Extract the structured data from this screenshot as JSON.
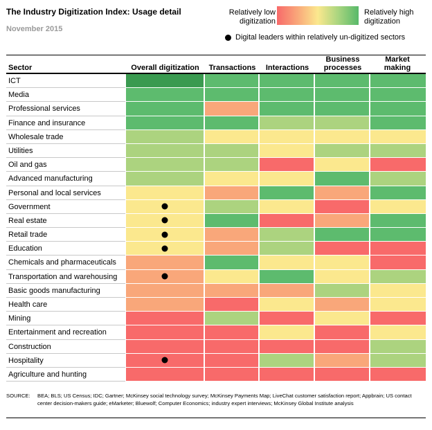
{
  "title": "The Industry Digitization Index: Usage detail",
  "date": "November 2015",
  "legend": {
    "low": "Relatively low digitization",
    "high": "Relatively high digitization",
    "leader_note": "Digital leaders within relatively un-digitized sectors"
  },
  "colors": {
    "1": "#f86a6a",
    "2": "#f9a77a",
    "3": "#fbe88e",
    "4": "#acd37f",
    "5": "#5dbb6e",
    "6": "#3a9a50"
  },
  "chart_data": {
    "type": "heatmap",
    "scale_note": "levels 1 (relatively low) to 6 (relatively high digitization)",
    "columns": [
      "Sector",
      "Overall digitization",
      "Transactions",
      "Interactions",
      "Business processes",
      "Market making"
    ],
    "rows": [
      {
        "sector": "ICT",
        "values": [
          6,
          5,
          5,
          5,
          5
        ],
        "leader": false
      },
      {
        "sector": "Media",
        "values": [
          5,
          5,
          5,
          5,
          5
        ],
        "leader": false
      },
      {
        "sector": "Professional services",
        "values": [
          5,
          2,
          5,
          5,
          5
        ],
        "leader": false
      },
      {
        "sector": "Finance and insurance",
        "values": [
          5,
          5,
          4,
          4,
          5
        ],
        "leader": false
      },
      {
        "sector": "Wholesale trade",
        "values": [
          4,
          3,
          3,
          3,
          3
        ],
        "leader": false
      },
      {
        "sector": "Utilities",
        "values": [
          4,
          4,
          3,
          4,
          4
        ],
        "leader": false
      },
      {
        "sector": "Oil and gas",
        "values": [
          4,
          4,
          1,
          3,
          1
        ],
        "leader": false
      },
      {
        "sector": "Advanced manufacturing",
        "values": [
          4,
          3,
          3,
          5,
          4
        ],
        "leader": false
      },
      {
        "sector": "Personal and local services",
        "values": [
          3,
          2,
          5,
          2,
          5
        ],
        "leader": false
      },
      {
        "sector": "Government",
        "values": [
          3,
          4,
          3,
          1,
          3
        ],
        "leader": true
      },
      {
        "sector": "Real estate",
        "values": [
          3,
          5,
          1,
          2,
          5
        ],
        "leader": true
      },
      {
        "sector": "Retail trade",
        "values": [
          3,
          2,
          4,
          5,
          5
        ],
        "leader": true
      },
      {
        "sector": "Education",
        "values": [
          3,
          2,
          4,
          1,
          1
        ],
        "leader": true
      },
      {
        "sector": "Chemicals and pharmaceuticals",
        "values": [
          2,
          5,
          3,
          3,
          1
        ],
        "leader": false
      },
      {
        "sector": "Transportation and warehousing",
        "values": [
          2,
          3,
          5,
          3,
          4
        ],
        "leader": true
      },
      {
        "sector": "Basic goods manufacturing",
        "values": [
          2,
          2,
          2,
          4,
          3
        ],
        "leader": false
      },
      {
        "sector": "Health care",
        "values": [
          2,
          1,
          3,
          2,
          3
        ],
        "leader": false
      },
      {
        "sector": "Mining",
        "values": [
          1,
          4,
          1,
          3,
          1
        ],
        "leader": false
      },
      {
        "sector": "Entertainment and recreation",
        "values": [
          1,
          1,
          3,
          1,
          3
        ],
        "leader": false
      },
      {
        "sector": "Construction",
        "values": [
          1,
          1,
          1,
          1,
          4
        ],
        "leader": false
      },
      {
        "sector": "Hospitality",
        "values": [
          1,
          1,
          4,
          2,
          4
        ],
        "leader": true
      },
      {
        "sector": "Agriculture and hunting",
        "values": [
          1,
          1,
          1,
          1,
          1
        ],
        "leader": false
      }
    ]
  },
  "source_label": "SOURCE:",
  "source_text": "BEA; BLS; US Census; IDC; Gartner; McKinsey social technology survey; McKinsey Payments Map; LiveChat customer satisfaction report; Appbrain; US contact center decision-makers guide; eMarketer; Bluewolf; Computer Economics; industry expert interviews; McKinsey Global Institute analysis"
}
